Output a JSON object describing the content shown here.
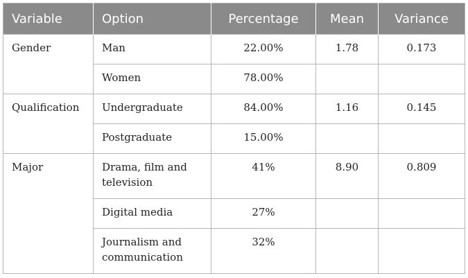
{
  "table": {
    "headers": [
      "Variable",
      "Option",
      "Percentage",
      "Mean",
      "Variance"
    ],
    "groups": [
      {
        "variable": "Gender",
        "rows": [
          {
            "option": "Man",
            "percentage": "22.00%",
            "mean": "1.78",
            "variance": "0.173"
          },
          {
            "option": "Women",
            "percentage": "78.00%",
            "mean": "",
            "variance": ""
          }
        ]
      },
      {
        "variable": "Qualification",
        "rows": [
          {
            "option": "Undergraduate",
            "percentage": "84.00%",
            "mean": "1.16",
            "variance": "0.145"
          },
          {
            "option": "Postgraduate",
            "percentage": "15.00%",
            "mean": "",
            "variance": ""
          }
        ]
      },
      {
        "variable": "Major",
        "rows": [
          {
            "option": "Drama, film and television",
            "percentage": "41%",
            "mean": "8.90",
            "variance": "0.809"
          },
          {
            "option": "Digital media",
            "percentage": "27%",
            "mean": "",
            "variance": ""
          },
          {
            "option": "Journalism and communication",
            "percentage": "32%",
            "mean": "",
            "variance": ""
          }
        ]
      }
    ]
  }
}
